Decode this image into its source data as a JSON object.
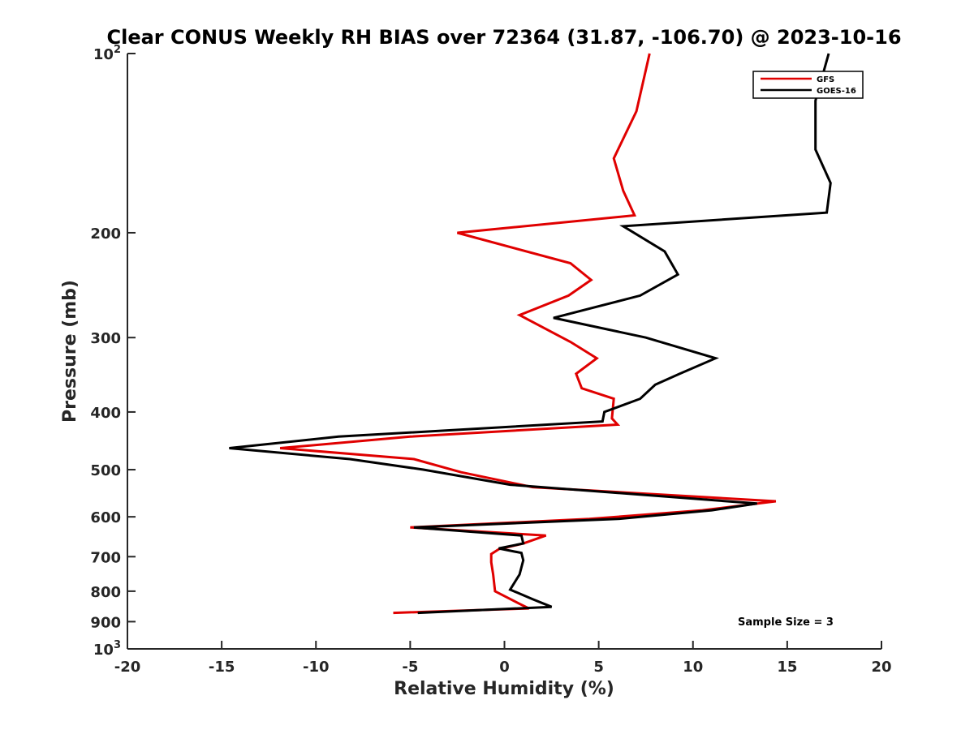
{
  "chart_data": {
    "type": "line",
    "title": "Clear CONUS Weekly RH BIAS over 72364 (31.87, -106.70) @ 2023-10-16",
    "xlabel": "Relative Humidity (%)",
    "ylabel": "Pressure (mb)",
    "xlim": [
      -20,
      20
    ],
    "ylim": [
      100,
      1000
    ],
    "y_scale": "log",
    "y_direction": "reversed",
    "grid": false,
    "legend_position": "top-right",
    "x_ticks": [
      -20,
      -15,
      -10,
      -5,
      0,
      5,
      10,
      15,
      20
    ],
    "y_ticks": [
      {
        "value": 100,
        "base": "10",
        "exp": "2"
      },
      {
        "value": 200,
        "label": "200"
      },
      {
        "value": 300,
        "label": "300"
      },
      {
        "value": 400,
        "label": "400"
      },
      {
        "value": 500,
        "label": "500"
      },
      {
        "value": 600,
        "label": "600"
      },
      {
        "value": 700,
        "label": "700"
      },
      {
        "value": 800,
        "label": "800"
      },
      {
        "value": 900,
        "label": "900"
      },
      {
        "value": 1000,
        "base": "10",
        "exp": "3"
      }
    ],
    "annotation": "Sample Size = 3",
    "series": [
      {
        "name": "GFS",
        "color": "#e00000",
        "points": [
          [
            7.7,
            100
          ],
          [
            7.0,
            125
          ],
          [
            5.8,
            150
          ],
          [
            6.3,
            170
          ],
          [
            6.9,
            187
          ],
          [
            -2.5,
            200
          ],
          [
            3.5,
            225
          ],
          [
            4.6,
            240
          ],
          [
            3.4,
            255
          ],
          [
            0.8,
            275
          ],
          [
            3.5,
            305
          ],
          [
            4.9,
            325
          ],
          [
            3.8,
            345
          ],
          [
            4.1,
            365
          ],
          [
            5.8,
            380
          ],
          [
            5.7,
            410
          ],
          [
            6.0,
            420
          ],
          [
            -5.0,
            440
          ],
          [
            -11.9,
            460
          ],
          [
            -4.8,
            480
          ],
          [
            -2.3,
            505
          ],
          [
            1.5,
            535
          ],
          [
            14.4,
            565
          ],
          [
            10.5,
            585
          ],
          [
            4.5,
            605
          ],
          [
            -5.0,
            625
          ],
          [
            2.2,
            645
          ],
          [
            1.0,
            665
          ],
          [
            -0.3,
            680
          ],
          [
            -0.7,
            693
          ],
          [
            -0.7,
            715
          ],
          [
            -0.6,
            750
          ],
          [
            -0.5,
            800
          ],
          [
            0.8,
            840
          ],
          [
            1.3,
            855
          ],
          [
            -5.9,
            870
          ]
        ]
      },
      {
        "name": "GOES-16",
        "color": "#000000",
        "points": [
          [
            17.2,
            100
          ],
          [
            16.5,
            120
          ],
          [
            16.5,
            145
          ],
          [
            17.3,
            165
          ],
          [
            17.1,
            185
          ],
          [
            6.3,
            195
          ],
          [
            8.5,
            215
          ],
          [
            9.2,
            235
          ],
          [
            7.2,
            255
          ],
          [
            2.6,
            278
          ],
          [
            7.5,
            300
          ],
          [
            11.2,
            325
          ],
          [
            9.3,
            345
          ],
          [
            8.0,
            360
          ],
          [
            7.2,
            380
          ],
          [
            5.3,
            400
          ],
          [
            5.2,
            415
          ],
          [
            -8.8,
            440
          ],
          [
            -14.6,
            460
          ],
          [
            -8.2,
            480
          ],
          [
            -4.3,
            500
          ],
          [
            0.3,
            530
          ],
          [
            13.4,
            570
          ],
          [
            11.0,
            585
          ],
          [
            6.0,
            605
          ],
          [
            -4.8,
            625
          ],
          [
            0.9,
            645
          ],
          [
            1.0,
            665
          ],
          [
            -0.3,
            678
          ],
          [
            0.9,
            690
          ],
          [
            1.0,
            710
          ],
          [
            0.8,
            750
          ],
          [
            0.3,
            795
          ],
          [
            1.5,
            825
          ],
          [
            2.5,
            850
          ],
          [
            -4.6,
            870
          ]
        ]
      }
    ]
  }
}
